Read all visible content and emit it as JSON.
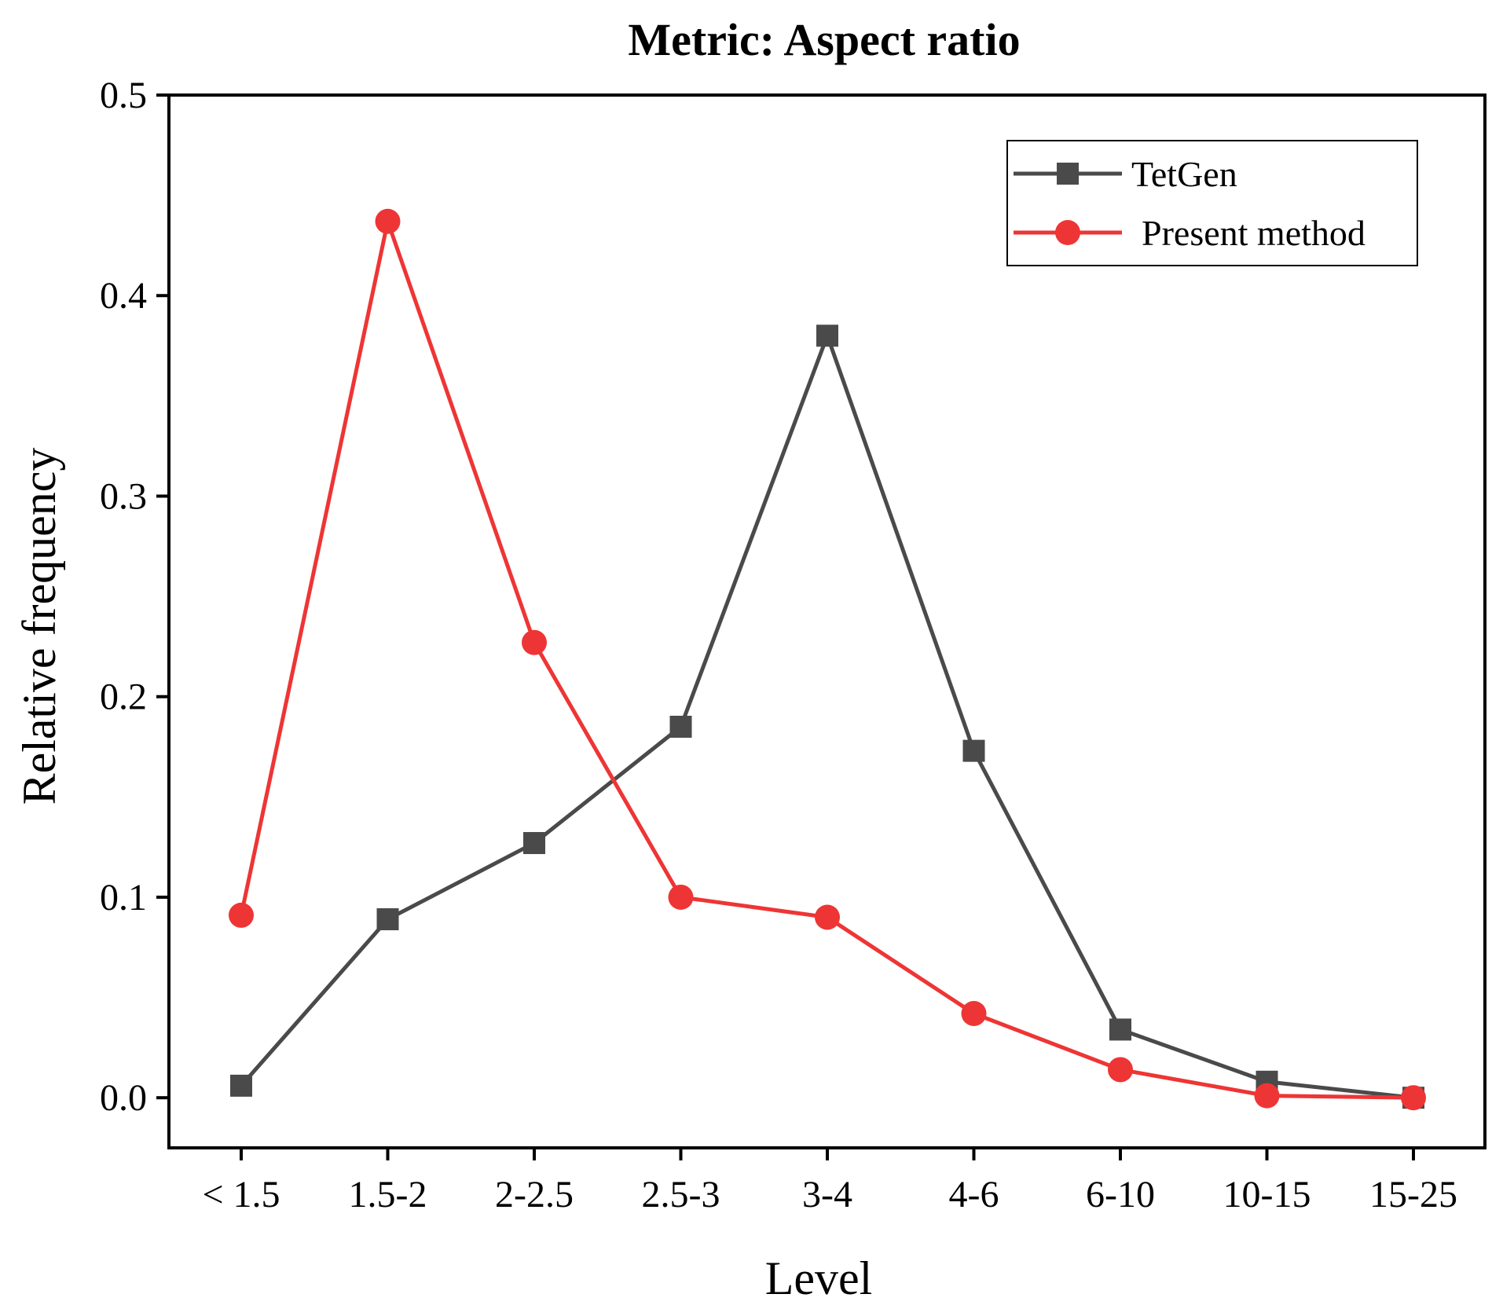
{
  "chart_data": {
    "type": "line",
    "title": "Metric: Aspect  ratio",
    "xlabel": "Level",
    "ylabel": "Relative frequency",
    "categories": [
      "< 1.5",
      "1.5-2",
      "2-2.5",
      "2.5-3",
      "3-4",
      "4-6",
      "6-10",
      "10-15",
      "15-25"
    ],
    "ylim": [
      -0.025,
      0.5
    ],
    "yticks": [
      0.0,
      0.1,
      0.2,
      0.3,
      0.4,
      0.5
    ],
    "ytick_labels": [
      "0.0",
      "0.1",
      "0.2",
      "0.3",
      "0.4",
      "0.5"
    ],
    "grid": false,
    "legend": "top-right",
    "series": [
      {
        "name": "TetGen",
        "marker": "square",
        "color": "#4a4a4a",
        "values": [
          0.006,
          0.089,
          0.127,
          0.185,
          0.38,
          0.173,
          0.034,
          0.008,
          0.0
        ]
      },
      {
        "name": "Present method",
        "marker": "circle",
        "color": "#ee3535",
        "values": [
          0.091,
          0.437,
          0.227,
          0.1,
          0.09,
          0.042,
          0.014,
          0.001,
          0.0
        ]
      }
    ]
  }
}
